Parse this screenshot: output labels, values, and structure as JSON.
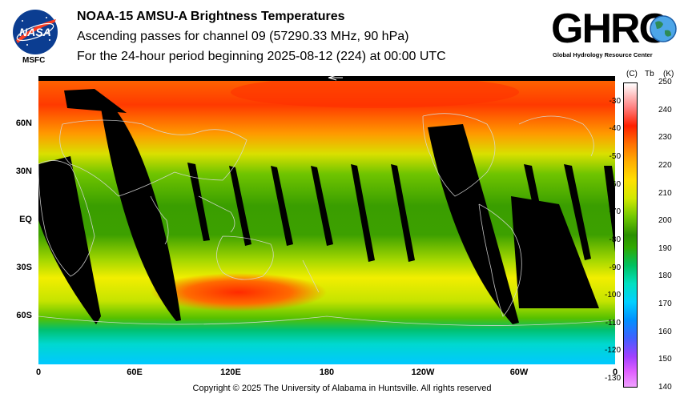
{
  "header": {
    "title": "NOAA-15 AMSU-A Brightness Temperatures",
    "line2": "Ascending passes for channel 09 (57290.33 MHz, 90 hPa)",
    "line3": "For the 24-hour period beginning 2025-08-12 (224) at 00:00 UTC"
  },
  "logos": {
    "nasa_label": "NASA",
    "msfc_label": "MSFC",
    "ghrc_label": "GHRC",
    "ghrc_subtitle": "Global Hydrology Resource Center"
  },
  "map": {
    "lat_labels": [
      "60N",
      "30N",
      "EQ",
      "30S",
      "60S"
    ],
    "lon_labels": [
      "0",
      "60E",
      "120E",
      "180",
      "120W",
      "60W",
      "0"
    ],
    "orbit_gap_color": "#000000"
  },
  "colorbar": {
    "header_c": "(C)",
    "header_tb": "Tb",
    "header_k": "(K)",
    "kelvin_ticks": [
      "250",
      "240",
      "230",
      "220",
      "210",
      "200",
      "190",
      "180",
      "170",
      "160",
      "150",
      "140"
    ],
    "celsius_ticks": [
      "-30",
      "-40",
      "-50",
      "-60",
      "-70",
      "-80",
      "-90",
      "-100",
      "-110",
      "-120",
      "-130"
    ],
    "range_k": [
      140,
      250
    ]
  },
  "footer": {
    "copyright": "Copyright © 2025 The University of Alabama in Huntsville.  All rights reserved"
  }
}
